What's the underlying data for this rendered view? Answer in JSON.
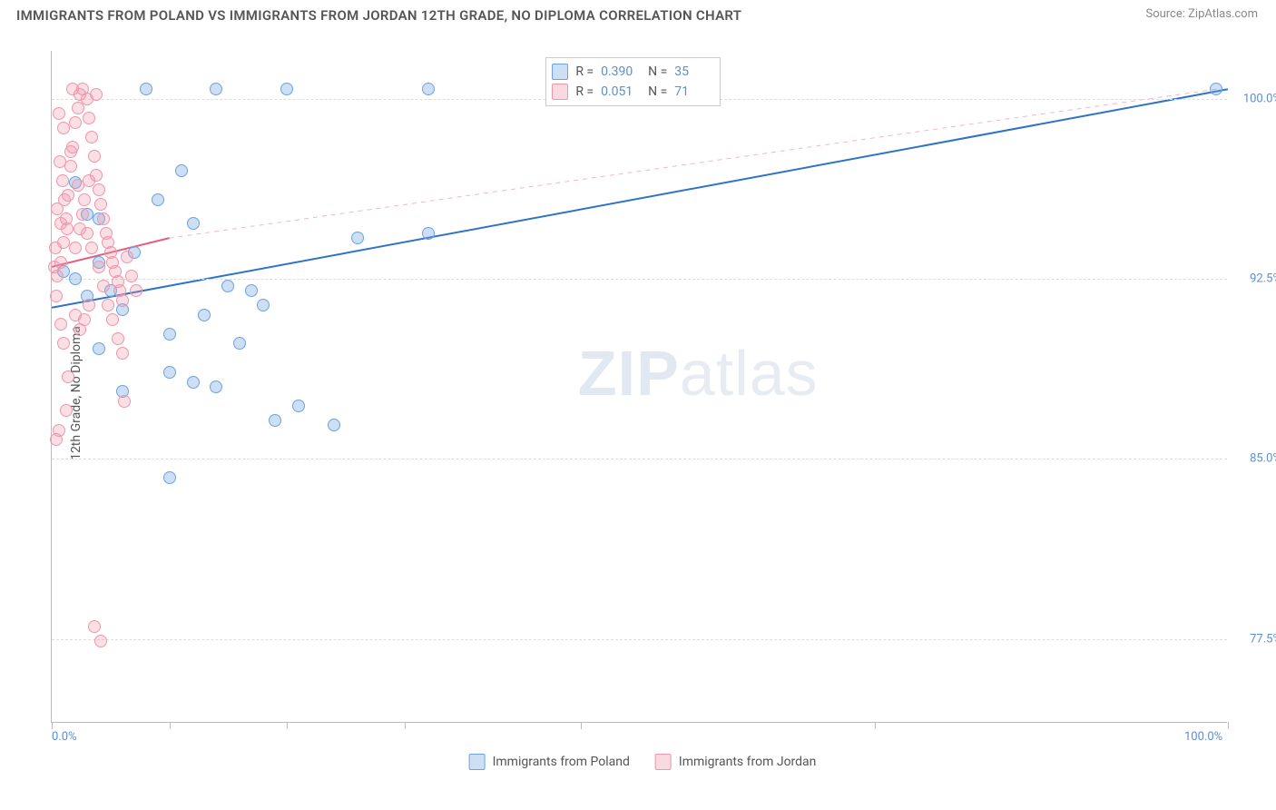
{
  "header": {
    "title": "IMMIGRANTS FROM POLAND VS IMMIGRANTS FROM JORDAN 12TH GRADE, NO DIPLOMA CORRELATION CHART",
    "source": "Source: ZipAtlas.com"
  },
  "chart": {
    "type": "scatter",
    "ylabel": "12th Grade, No Diploma",
    "xlim": [
      0,
      100
    ],
    "ylim": [
      74,
      102
    ],
    "x_ticks": [
      0,
      10,
      20,
      30,
      45,
      70,
      100
    ],
    "x_tick_labels": {
      "0": "0.0%",
      "100": "100.0%"
    },
    "y_ticks": [
      77.5,
      85.0,
      92.5,
      100.0
    ],
    "y_tick_labels": [
      "77.5%",
      "85.0%",
      "92.5%",
      "100.0%"
    ],
    "grid_color": "#dddddd",
    "axis_color": "#bbbbbb",
    "background_color": "#ffffff",
    "series": [
      {
        "name": "Immigrants from Poland",
        "color_fill": "rgba(109,162,223,0.35)",
        "color_stroke": "#6da2df",
        "marker_radius": 7,
        "R": "0.390",
        "N": "35",
        "trend": {
          "x1": 0,
          "y1": 91.3,
          "x2": 100,
          "y2": 100.4,
          "stroke": "#2e73c8",
          "width": 2,
          "dash": "none"
        },
        "trend_ext": null,
        "points": [
          [
            1,
            92.8
          ],
          [
            2,
            92.5
          ],
          [
            3,
            91.8
          ],
          [
            4,
            93.2
          ],
          [
            5,
            92.0
          ],
          [
            6,
            91.2
          ],
          [
            4,
            95.0
          ],
          [
            7,
            93.6
          ],
          [
            8,
            100.4
          ],
          [
            14,
            100.4
          ],
          [
            20,
            100.4
          ],
          [
            32,
            100.4
          ],
          [
            99,
            100.4
          ],
          [
            10,
            90.2
          ],
          [
            12,
            94.8
          ],
          [
            13,
            91.0
          ],
          [
            15,
            92.2
          ],
          [
            17,
            92.0
          ],
          [
            18,
            91.4
          ],
          [
            11,
            97.0
          ],
          [
            9,
            95.8
          ],
          [
            6,
            87.8
          ],
          [
            10,
            88.6
          ],
          [
            12,
            88.2
          ],
          [
            14,
            88.0
          ],
          [
            16,
            89.8
          ],
          [
            19,
            86.6
          ],
          [
            21,
            87.2
          ],
          [
            24,
            86.4
          ],
          [
            26,
            94.2
          ],
          [
            32,
            94.4
          ],
          [
            10,
            84.2
          ],
          [
            4,
            89.6
          ],
          [
            3,
            95.2
          ],
          [
            2,
            96.5
          ]
        ]
      },
      {
        "name": "Immigrants from Jordan",
        "color_fill": "rgba(240,150,170,0.30)",
        "color_stroke": "#f096aa",
        "marker_radius": 7,
        "R": "0.051",
        "N": "71",
        "trend": {
          "x1": 0,
          "y1": 93.0,
          "x2": 10,
          "y2": 94.2,
          "stroke": "#e85b7b",
          "width": 2,
          "dash": "none"
        },
        "trend_ext": {
          "x1": 10,
          "y1": 94.2,
          "x2": 99,
          "y2": 100.4,
          "stroke": "#f4b6c4",
          "width": 1,
          "dash": "5,5"
        },
        "points": [
          [
            0.5,
            92.6
          ],
          [
            0.8,
            93.2
          ],
          [
            1.0,
            94.0
          ],
          [
            1.2,
            95.0
          ],
          [
            1.4,
            96.0
          ],
          [
            1.6,
            97.2
          ],
          [
            1.8,
            98.0
          ],
          [
            2.0,
            99.0
          ],
          [
            2.2,
            99.6
          ],
          [
            2.4,
            100.2
          ],
          [
            2.6,
            100.4
          ],
          [
            3.0,
            100.0
          ],
          [
            3.2,
            99.2
          ],
          [
            3.4,
            98.4
          ],
          [
            3.6,
            97.6
          ],
          [
            3.8,
            96.8
          ],
          [
            4.0,
            96.2
          ],
          [
            4.2,
            95.6
          ],
          [
            4.4,
            95.0
          ],
          [
            4.6,
            94.4
          ],
          [
            4.8,
            94.0
          ],
          [
            5.0,
            93.6
          ],
          [
            5.2,
            93.2
          ],
          [
            5.4,
            92.8
          ],
          [
            5.6,
            92.4
          ],
          [
            5.8,
            92.0
          ],
          [
            6.0,
            91.6
          ],
          [
            2.0,
            91.0
          ],
          [
            2.4,
            90.4
          ],
          [
            2.8,
            90.8
          ],
          [
            3.2,
            91.4
          ],
          [
            1.0,
            89.8
          ],
          [
            1.4,
            88.4
          ],
          [
            0.8,
            90.6
          ],
          [
            0.6,
            86.2
          ],
          [
            1.2,
            87.0
          ],
          [
            6.2,
            87.4
          ],
          [
            0.4,
            85.8
          ],
          [
            3.6,
            78.0
          ],
          [
            4.2,
            77.4
          ],
          [
            1.6,
            97.8
          ],
          [
            1.0,
            98.8
          ],
          [
            0.7,
            97.4
          ],
          [
            0.9,
            96.6
          ],
          [
            1.1,
            95.8
          ],
          [
            1.3,
            94.6
          ],
          [
            0.5,
            95.4
          ],
          [
            0.3,
            93.8
          ],
          [
            0.6,
            99.4
          ],
          [
            0.8,
            94.8
          ],
          [
            2.2,
            96.4
          ],
          [
            2.6,
            95.2
          ],
          [
            3.0,
            94.4
          ],
          [
            3.4,
            93.8
          ],
          [
            4.0,
            93.0
          ],
          [
            4.4,
            92.2
          ],
          [
            4.8,
            91.4
          ],
          [
            5.2,
            90.8
          ],
          [
            5.6,
            90.0
          ],
          [
            6.0,
            89.4
          ],
          [
            6.4,
            93.4
          ],
          [
            6.8,
            92.6
          ],
          [
            7.2,
            92.0
          ],
          [
            1.8,
            100.4
          ],
          [
            3.8,
            100.2
          ],
          [
            2.0,
            93.8
          ],
          [
            2.4,
            94.6
          ],
          [
            2.8,
            95.8
          ],
          [
            3.2,
            96.6
          ],
          [
            0.4,
            91.8
          ],
          [
            0.2,
            93.0
          ]
        ]
      }
    ],
    "stats_box": {
      "left_pct": 42,
      "top_pct": 1
    },
    "legend_labels": [
      "Immigrants from Poland",
      "Immigrants from Jordan"
    ],
    "watermark": {
      "text1": "ZIP",
      "text2": "atlas"
    }
  }
}
